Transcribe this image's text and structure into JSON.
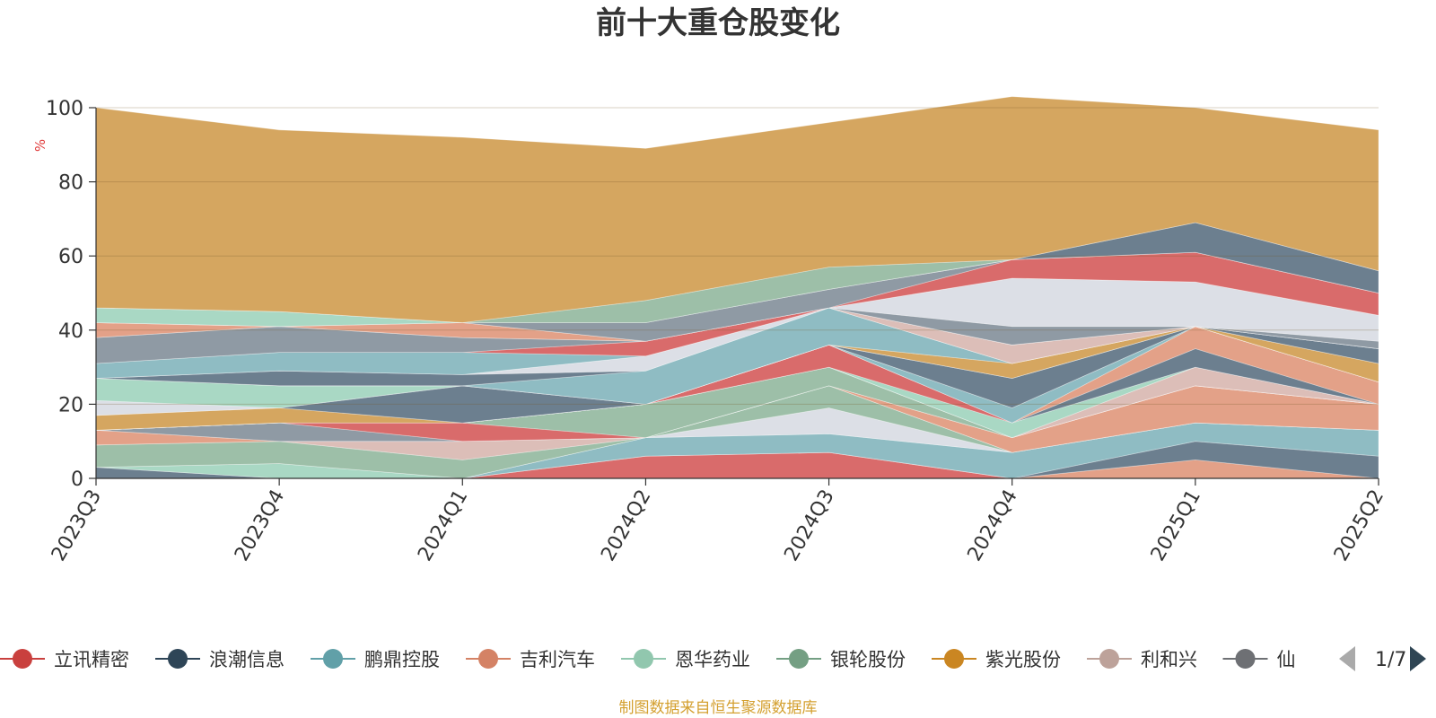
{
  "title": "前十大重仓股变化",
  "source_note": "制图数据来自恒生聚源数据库",
  "legend_page": "1/7",
  "chart_data": {
    "type": "area",
    "stacked": true,
    "y_unit": "%",
    "ylim": [
      0,
      100
    ],
    "yticks": [
      0,
      20,
      40,
      60,
      80,
      100
    ],
    "grid": true,
    "legend_position": "bottom",
    "categories": [
      "2023Q3",
      "2023Q4",
      "2024Q1",
      "2024Q2",
      "2024Q3",
      "2024Q4",
      "2025Q1",
      "2025Q2"
    ],
    "series": [
      {
        "name": "立讯精密",
        "color": "#d96b6b",
        "values": [
          0,
          0,
          0,
          6,
          7,
          0,
          0,
          0
        ]
      },
      {
        "name": "",
        "color": "#e3a188",
        "values": [
          0,
          0,
          0,
          0,
          0,
          0,
          5,
          0
        ]
      },
      {
        "name": "",
        "color": "#6c7f8f",
        "values": [
          3,
          0,
          0,
          0,
          0,
          0,
          5,
          6
        ]
      },
      {
        "name": "鹏鼎控股",
        "color": "#8fbcc3",
        "values": [
          0,
          0,
          0,
          5,
          5,
          7,
          5,
          7
        ]
      },
      {
        "name": "恩华药业",
        "color": "#a9d8c4",
        "values": [
          0,
          4,
          0,
          0,
          0,
          0,
          0,
          0
        ]
      },
      {
        "name": "",
        "color": "#dcdfe6",
        "values": [
          0,
          0,
          0,
          0,
          7,
          0,
          0,
          0
        ]
      },
      {
        "name": "银轮股份",
        "color": "#9dbfa8",
        "values": [
          6,
          6,
          5,
          0,
          6,
          0,
          0,
          0
        ]
      },
      {
        "name": "利和兴",
        "color": "#dcbeb8",
        "values": [
          0,
          0,
          5,
          0,
          0,
          0,
          0,
          0
        ]
      },
      {
        "name": "",
        "color": "#e3a188",
        "values": [
          4,
          0,
          0,
          0,
          0,
          4,
          10,
          7
        ]
      },
      {
        "name": "",
        "color": "#8f9aa4",
        "values": [
          0,
          5,
          0,
          0,
          0,
          0,
          0,
          0
        ]
      },
      {
        "name": "",
        "color": "#d96b6b",
        "values": [
          0,
          0,
          5,
          0,
          0,
          0,
          0,
          0
        ]
      },
      {
        "name": "",
        "color": "#9dbfa8",
        "values": [
          0,
          0,
          0,
          9,
          5,
          0,
          0,
          0
        ]
      },
      {
        "name": "",
        "color": "#e3a188",
        "values": [
          0,
          0,
          0,
          0,
          0,
          0,
          0,
          0
        ]
      },
      {
        "name": "",
        "color": "#dcbeb8",
        "values": [
          0,
          0,
          0,
          0,
          0,
          0,
          5,
          0
        ]
      },
      {
        "name": "",
        "color": "#a9d8c4",
        "values": [
          0,
          0,
          0,
          0,
          0,
          4,
          0,
          0
        ]
      },
      {
        "name": "",
        "color": "#d96b6b",
        "values": [
          0,
          0,
          0,
          0,
          6,
          0,
          0,
          0
        ]
      },
      {
        "name": "",
        "color": "#6c7f8f",
        "values": [
          0,
          0,
          0,
          0,
          0,
          0,
          5,
          0
        ]
      },
      {
        "name": "",
        "color": "#e3a188",
        "values": [
          0,
          0,
          0,
          0,
          0,
          0,
          6,
          6
        ]
      },
      {
        "name": "",
        "color": "#8fbcc3",
        "values": [
          0,
          0,
          0,
          0,
          0,
          4,
          0,
          0
        ]
      },
      {
        "name": "紫光股份",
        "color": "#d5a660",
        "values": [
          4,
          4,
          0,
          0,
          0,
          0,
          0,
          0
        ]
      },
      {
        "name": "",
        "color": "#6c7f8f",
        "values": [
          0,
          0,
          10,
          0,
          0,
          8,
          0,
          0
        ]
      },
      {
        "name": "",
        "color": "#dcdfe6",
        "values": [
          4,
          0,
          0,
          0,
          0,
          0,
          0,
          0
        ]
      },
      {
        "name": "",
        "color": "#a9d8c4",
        "values": [
          6,
          6,
          0,
          0,
          0,
          0,
          0,
          0
        ]
      },
      {
        "name": "",
        "color": "#d5a660",
        "values": [
          0,
          0,
          0,
          0,
          0,
          4,
          0,
          5
        ]
      },
      {
        "name": "",
        "color": "#8fbcc3",
        "values": [
          0,
          0,
          0,
          9,
          10,
          0,
          0,
          0
        ]
      },
      {
        "name": "",
        "color": "#6c7f8f",
        "values": [
          0,
          4,
          3,
          0,
          0,
          0,
          0,
          4
        ]
      },
      {
        "name": "",
        "color": "#dcdfe6",
        "values": [
          0,
          0,
          0,
          4,
          0,
          0,
          0,
          0
        ]
      },
      {
        "name": "",
        "color": "#dcbeb8",
        "values": [
          0,
          0,
          0,
          0,
          0,
          5,
          0,
          0
        ]
      },
      {
        "name": "",
        "color": "#8fbcc3",
        "values": [
          4,
          5,
          6,
          0,
          0,
          0,
          0,
          0
        ]
      },
      {
        "name": "",
        "color": "#d96b6b",
        "values": [
          0,
          0,
          0,
          4,
          0,
          0,
          0,
          0
        ]
      },
      {
        "name": "",
        "color": "#8f9aa4",
        "values": [
          7,
          7,
          4,
          0,
          0,
          5,
          0,
          2
        ]
      },
      {
        "name": "",
        "color": "#dcdfe6",
        "values": [
          0,
          0,
          0,
          0,
          0,
          13,
          12,
          7
        ]
      },
      {
        "name": "",
        "color": "#e3a188",
        "values": [
          4,
          0,
          4,
          0,
          0,
          0,
          0,
          0
        ]
      },
      {
        "name": "",
        "color": "#d96b6b",
        "values": [
          0,
          0,
          0,
          0,
          0,
          5,
          8,
          6
        ]
      },
      {
        "name": "",
        "color": "#8f9aa4",
        "values": [
          0,
          0,
          0,
          5,
          5,
          0,
          0,
          0
        ]
      },
      {
        "name": "",
        "color": "#a9d8c4",
        "values": [
          4,
          4,
          0,
          0,
          0,
          0,
          0,
          0
        ]
      },
      {
        "name": "",
        "color": "#6c7f8f",
        "values": [
          0,
          0,
          0,
          0,
          0,
          0,
          8,
          6
        ]
      },
      {
        "name": "",
        "color": "#9dbfa8",
        "values": [
          0,
          0,
          0,
          6,
          6,
          0,
          0,
          0
        ]
      },
      {
        "name": "",
        "color": "#d5a660",
        "values": [
          54,
          49,
          50,
          41,
          39,
          44,
          31,
          38
        ]
      }
    ]
  },
  "legend": [
    {
      "name": "立讯精密",
      "color": "#c9403e"
    },
    {
      "name": "浪潮信息",
      "color": "#2e4557"
    },
    {
      "name": "鹏鼎控股",
      "color": "#61a0a8"
    },
    {
      "name": "吉利汽车",
      "color": "#d48265"
    },
    {
      "name": "恩华药业",
      "color": "#91c7ae"
    },
    {
      "name": "银轮股份",
      "color": "#749f83"
    },
    {
      "name": "紫光股份",
      "color": "#ca8622"
    },
    {
      "name": "利和兴",
      "color": "#bda29a"
    },
    {
      "name": "仙",
      "color": "#6e7074"
    }
  ]
}
